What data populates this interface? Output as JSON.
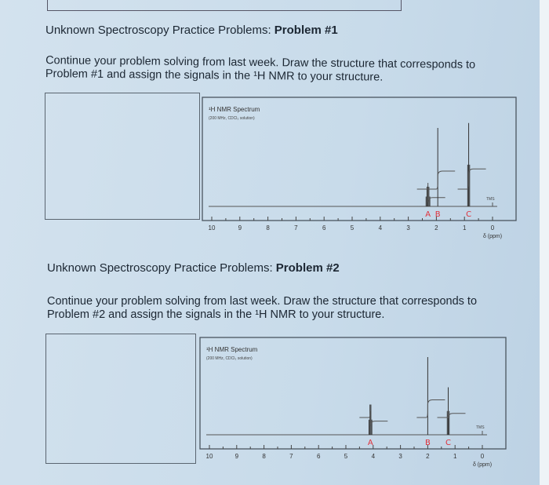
{
  "problems": [
    {
      "title_prefix": "Unknown Spectroscopy Practice Problems: ",
      "title_bold": "Problem #1",
      "instructions_line1": "Continue your problem solving from last week. Draw the structure that corresponds to",
      "instructions_line2": "Problem #1 and assign the signals in the ¹H NMR to your structure.",
      "spectrum": {
        "title": "¹H NMR Spectrum",
        "subtitle": "(200 MHz, CDCl₃ solution)",
        "xlabel": "δ (ppm)",
        "reference": "TMS",
        "x_ticks": [
          "10",
          "9",
          "8",
          "7",
          "6",
          "5",
          "4",
          "3",
          "2",
          "1",
          "0"
        ],
        "xlim": [
          10,
          0
        ],
        "peaks": [
          {
            "label": "A",
            "ppm": 2.3,
            "height": 0.2,
            "type": "multiplet"
          },
          {
            "label": "B",
            "ppm": 1.95,
            "height": 0.8,
            "type": "singlet"
          },
          {
            "label": "C",
            "ppm": 0.85,
            "height": 0.85,
            "type": "triplet"
          }
        ],
        "label_color": "#e0303a"
      }
    },
    {
      "title_prefix": "Unknown Spectroscopy Practice Problems: ",
      "title_bold": "Problem #2",
      "instructions_line1": "Continue your problem solving from last week. Draw the structure that corresponds to",
      "instructions_line2": "Problem #2 and assign the signals in the ¹H NMR to your structure.",
      "spectrum": {
        "title": "¹H NMR Spectrum",
        "subtitle": "(200 MHz, CDCl₃ solution)",
        "xlabel": "δ (ppm)",
        "reference": "TMS",
        "x_ticks": [
          "10",
          "9",
          "8",
          "7",
          "6",
          "5",
          "4",
          "3",
          "2",
          "1",
          "0"
        ],
        "xlim": [
          10,
          0
        ],
        "peaks": [
          {
            "label": "A",
            "ppm": 4.1,
            "height": 0.35,
            "type": "quartet"
          },
          {
            "label": "B",
            "ppm": 2.0,
            "height": 0.9,
            "type": "singlet"
          },
          {
            "label": "C",
            "ppm": 1.25,
            "height": 0.55,
            "type": "triplet"
          }
        ],
        "label_color": "#e0303a"
      }
    }
  ]
}
